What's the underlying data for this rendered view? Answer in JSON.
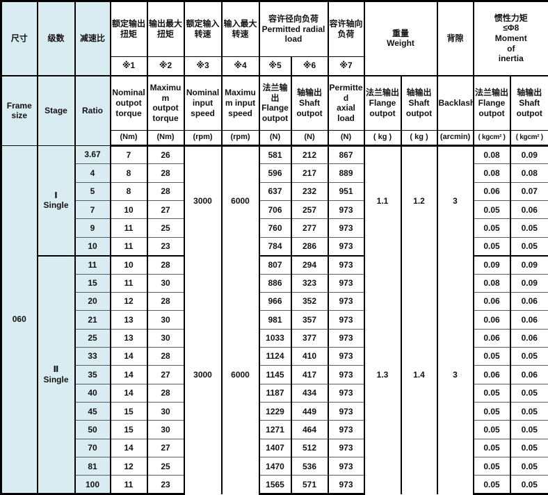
{
  "colors": {
    "header_blue": "#d9ecf2",
    "grid_line": "#000000",
    "row_line": "#5a5a5a"
  },
  "table": {
    "frame_size": "060",
    "header": {
      "frame_cn": "尺寸",
      "frame_en": "Frame\nsize",
      "stage_cn": "级数",
      "stage_en": "Stage",
      "ratio_cn": "减速比",
      "ratio_en": "Ratio",
      "nominal_output_torque_cn": "额定输出\n扭矩",
      "nominal_output_torque_ref": "※1",
      "nominal_output_torque_en": "Nominal\noutpot\ntorque",
      "max_output_torque_cn": "输出最大\n扭矩",
      "max_output_torque_ref": "※2",
      "max_output_torque_en": "Maximu\nm\noutpot\ntorque",
      "nominal_input_speed_cn": "额定输入\n转速",
      "nominal_input_speed_ref": "※3",
      "nominal_input_speed_en": "Nominal\ninput\nspeed",
      "max_input_speed_cn": "输入最大\n转速",
      "max_input_speed_ref": "※4",
      "max_input_speed_en": "Maximu\nm input\nspeed",
      "radial_load_title": "容许径向负荷\nPermitted radial\nload",
      "radial_flange_ref": "※5",
      "radial_shaft_ref": "※6",
      "radial_flange": "法兰输出\nFlange\noutpot",
      "radial_shaft": "轴输出\nShaft\noutpot",
      "axial_load_cn": "容许轴向\n负荷",
      "axial_ref": "※7",
      "axial_en": "Permitte\nd\naxial\nload",
      "weight_title": "重量\nWeight",
      "weight_flange": "法兰输出\nFlange\noutpot",
      "weight_shaft": "轴输出\nShaft\noutpot",
      "backlash_cn": "背隙",
      "backlash_en": "Backlash",
      "inertia_title": "惯性力矩\n≤Φ8\nMoment\nof\ninertia",
      "inertia_flange": "法兰输出\nFlange\noutpot",
      "inertia_shaft": "轴输出\nShaft\noutpot",
      "units": [
        "(Nm)",
        "(Nm)",
        "(rpm)",
        "(rpm)",
        "(N)",
        "(N)",
        "(N)",
        "( kg )",
        "( kg )",
        "(arcmin)",
        "( kgcm² )",
        "( kgcm² )"
      ]
    },
    "row_columns": [
      "ratio",
      "nominal_output_torque",
      "max_output_torque",
      "radial_flange",
      "radial_shaft",
      "axial",
      "inertia_flange",
      "inertia_shaft"
    ],
    "groups": [
      {
        "stage": "Ⅰ\nSingle",
        "nominal_input_speed": "3000",
        "max_input_speed": "6000",
        "weight_flange": "1.1",
        "weight_shaft": "1.2",
        "backlash": "3",
        "rows": [
          [
            "3.67",
            "7",
            "26",
            "581",
            "212",
            "867",
            "0.08",
            "0.09"
          ],
          [
            "4",
            "8",
            "28",
            "596",
            "217",
            "889",
            "0.08",
            "0.08"
          ],
          [
            "5",
            "8",
            "28",
            "637",
            "232",
            "951",
            "0.06",
            "0.07"
          ],
          [
            "7",
            "10",
            "27",
            "706",
            "257",
            "973",
            "0.05",
            "0.06"
          ],
          [
            "9",
            "11",
            "25",
            "760",
            "277",
            "973",
            "0.05",
            "0.05"
          ],
          [
            "10",
            "11",
            "23",
            "784",
            "286",
            "973",
            "0.05",
            "0.05"
          ]
        ]
      },
      {
        "stage": "Ⅱ\nSingle",
        "nominal_input_speed": "3000",
        "max_input_speed": "6000",
        "weight_flange": "1.3",
        "weight_shaft": "1.4",
        "backlash": "3",
        "rows": [
          [
            "11",
            "10",
            "28",
            "807",
            "294",
            "973",
            "0.09",
            "0.09"
          ],
          [
            "15",
            "11",
            "30",
            "886",
            "323",
            "973",
            "0.08",
            "0.09"
          ],
          [
            "20",
            "12",
            "28",
            "966",
            "352",
            "973",
            "0.06",
            "0.06"
          ],
          [
            "21",
            "13",
            "30",
            "981",
            "357",
            "973",
            "0.06",
            "0.06"
          ],
          [
            "25",
            "13",
            "30",
            "1033",
            "377",
            "973",
            "0.06",
            "0.06"
          ],
          [
            "33",
            "14",
            "28",
            "1124",
            "410",
            "973",
            "0.05",
            "0.05"
          ],
          [
            "35",
            "14",
            "27",
            "1145",
            "417",
            "973",
            "0.06",
            "0.06"
          ],
          [
            "40",
            "14",
            "28",
            "1187",
            "434",
            "973",
            "0.05",
            "0.05"
          ],
          [
            "45",
            "15",
            "30",
            "1229",
            "449",
            "973",
            "0.05",
            "0.05"
          ],
          [
            "50",
            "15",
            "30",
            "1271",
            "464",
            "973",
            "0.05",
            "0.05"
          ],
          [
            "70",
            "14",
            "27",
            "1407",
            "512",
            "973",
            "0.05",
            "0.05"
          ],
          [
            "81",
            "12",
            "25",
            "1470",
            "536",
            "973",
            "0.05",
            "0.05"
          ],
          [
            "100",
            "11",
            "23",
            "1565",
            "571",
            "973",
            "0.05",
            "0.05"
          ]
        ]
      }
    ]
  }
}
